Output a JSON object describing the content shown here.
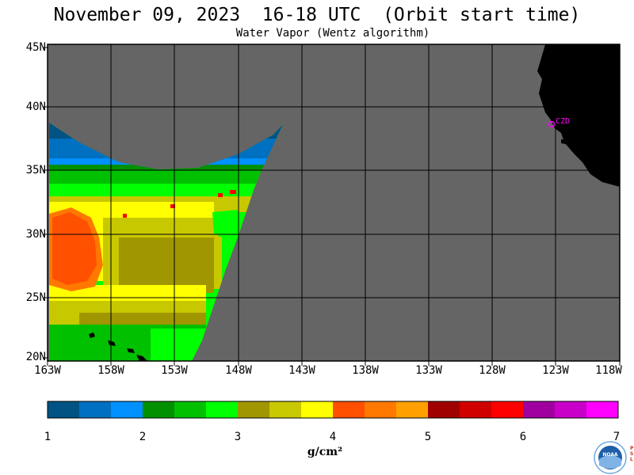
{
  "header": {
    "title": "November 09, 2023  16-18 UTC  (Orbit start time)",
    "subtitle": "Water Vapor (Wentz algorithm)"
  },
  "map": {
    "lat_labels": [
      "45N",
      "40N",
      "35N",
      "30N",
      "25N",
      "20N"
    ],
    "lon_labels": [
      "163W",
      "158W",
      "153W",
      "148W",
      "143W",
      "138W",
      "133W",
      "128W",
      "123W",
      "118W"
    ],
    "station_label": "CZD",
    "colors": {
      "ocean_no_data": "#656565",
      "land": "#000000",
      "grid": "#000000",
      "station": "#ff00ff"
    }
  },
  "colorbar": {
    "labels": [
      "1",
      "2",
      "3",
      "4",
      "5",
      "6",
      "7"
    ],
    "unit": "g/cm²",
    "colors": [
      "#005383",
      "#0070c0",
      "#0090ff",
      "#009000",
      "#00c000",
      "#00ff00",
      "#a09600",
      "#c8c800",
      "#ffff00",
      "#ff5000",
      "#ff7800",
      "#ffa000",
      "#a00000",
      "#d00000",
      "#ff0000",
      "#a000a0",
      "#c800c8",
      "#ff00ff"
    ]
  },
  "logo": {
    "text": "NOAA",
    "side_text": "PSL"
  }
}
